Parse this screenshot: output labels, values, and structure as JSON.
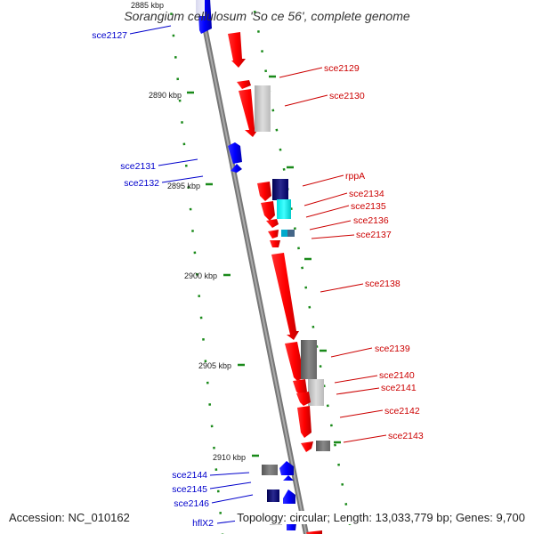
{
  "title": "Sorangium cellulosum 'So ce 56', complete genome",
  "accession": "Accession: NC_010162",
  "topology": "Topology: circular; Length: 13,033,779 bp; Genes: 9,700",
  "kbp_labels": [
    "2885 kbp",
    "2890 kbp",
    "2895 kbp",
    "2900 kbp",
    "2905 kbp",
    "2910 kbp"
  ],
  "genes_minus": [
    "sce2127",
    "sce2131",
    "sce2132",
    "sce2144",
    "sce2145",
    "sce2146",
    "hflX2"
  ],
  "genes_plus": [
    "sce2129",
    "sce2130",
    "rppA",
    "sce2134",
    "sce2135",
    "sce2136",
    "sce2137",
    "sce2138",
    "sce2139",
    "sce2140",
    "sce2141",
    "sce2142",
    "sce2143"
  ],
  "colors": {
    "minus_strand": "#0000cc",
    "plus_strand": "#cc0000",
    "gene_plus": "#ff0000",
    "gene_minus": "#0000ff",
    "backbone": "#888888",
    "ticks": "#008000"
  }
}
